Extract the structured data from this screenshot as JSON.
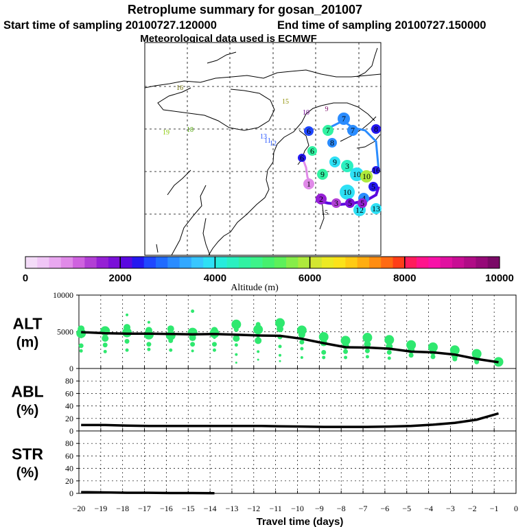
{
  "header": {
    "title": "Retroplume summary for gosan_201007",
    "start_label": "Start time of sampling 20100727.120000",
    "end_label": "End time of sampling 20100727.150000",
    "met_label": "Meteorological data used is ECMWF"
  },
  "colorbar": {
    "label": "Altitude (m)",
    "ticks": [
      "0",
      "2000",
      "4000",
      "6000",
      "8000",
      "10000"
    ],
    "colors": [
      "#f4dcf8",
      "#f0c6f6",
      "#e9a8f0",
      "#e08ae8",
      "#cf62df",
      "#b23fd5",
      "#9520d4",
      "#7a10d8",
      "#5a08e0",
      "#2418f0",
      "#1f47ff",
      "#1f6bff",
      "#2a8cff",
      "#32a8ff",
      "#38c6ff",
      "#2ee0f5",
      "#27ecdc",
      "#2af0c0",
      "#31f2a2",
      "#3df38a",
      "#46f06e",
      "#5df05a",
      "#86ed49",
      "#aeea3c",
      "#d3e631",
      "#ecea22",
      "#fbe21a",
      "#ffcb14",
      "#ffad10",
      "#ff8d10",
      "#ff6a12",
      "#ff3e18",
      "#ff1c5c",
      "#ff148c",
      "#f812a8",
      "#e010a0",
      "#c80e94",
      "#b00c86",
      "#960a78",
      "#7a0a66"
    ]
  },
  "map": {
    "run_labels": [
      {
        "t": "16",
        "c": "#6b6b00"
      },
      {
        "t": "15",
        "c": "#8f8f00"
      },
      {
        "t": "10",
        "c": "#6e0090"
      },
      {
        "t": "9",
        "c": "#7a0a66"
      },
      {
        "t": "19",
        "c": "#87c800"
      },
      {
        "t": "18",
        "c": "#4aa000"
      },
      {
        "t": "13",
        "c": "#2050ff"
      },
      {
        "t": "11",
        "c": "#2050ff"
      },
      {
        "t": "12",
        "c": "#2050ff"
      },
      {
        "t": "15",
        "c": "#111111"
      }
    ],
    "markers": [
      {
        "t": "7",
        "c": "#2a8cff"
      },
      {
        "t": "7",
        "c": "#31f2a2"
      },
      {
        "t": "7",
        "c": "#2a8cff"
      },
      {
        "t": "6",
        "c": "#1f47ff"
      },
      {
        "t": "8",
        "c": "#2a8cff"
      },
      {
        "t": "6",
        "c": "#31f2a2"
      },
      {
        "t": "9",
        "c": "#2ee0f5"
      },
      {
        "t": "3",
        "c": "#2af0c0"
      },
      {
        "t": "10",
        "c": "#2ee0f5"
      },
      {
        "t": "10",
        "c": "#aeea3c"
      },
      {
        "t": "9",
        "c": "#31f2a2"
      },
      {
        "t": "10",
        "c": "#2ee0f5"
      },
      {
        "t": "1",
        "c": "#e08ae8"
      },
      {
        "t": "2",
        "c": "#9520d4"
      },
      {
        "t": "3",
        "c": "#b23fd5"
      },
      {
        "t": "5",
        "c": "#7a10d8"
      },
      {
        "t": "4",
        "c": "#2a8cff"
      },
      {
        "t": "12",
        "c": "#2ee0f5"
      },
      {
        "t": "13",
        "c": "#2ee0f5"
      },
      {
        "t": "5",
        "c": "#2418f0"
      },
      {
        "t": "5",
        "c": "#9520d4"
      },
      {
        "t": "8",
        "c": "#2418f0"
      },
      {
        "t": "6",
        "c": "#2418f0"
      },
      {
        "t": "16",
        "c": "#2418f0"
      }
    ]
  },
  "chart_data": [
    {
      "type": "scatter",
      "title": "ALT",
      "ylabel": "ALT (m)",
      "ylabel_top": "ALT",
      "ylabel_bottom": "(m)",
      "ylim": [
        0,
        10000
      ],
      "yticks": [
        "0",
        "5000",
        "10000"
      ],
      "x": [
        -19.9,
        -18.8,
        -17.8,
        -16.8,
        -15.8,
        -14.8,
        -13.8,
        -12.8,
        -11.8,
        -10.8,
        -9.8,
        -8.8,
        -7.8,
        -6.8,
        -5.8,
        -4.8,
        -3.8,
        -2.8,
        -1.8,
        -0.8
      ],
      "median_line": [
        4950,
        4800,
        4750,
        4750,
        4700,
        4650,
        4700,
        4600,
        4500,
        4450,
        4050,
        3450,
        2900,
        2850,
        2700,
        2300,
        2200,
        1900,
        1300,
        850
      ],
      "clusters": [
        [
          4800,
          5400,
          3100,
          2400,
          4300
        ],
        [
          5100,
          4100,
          3200,
          2300
        ],
        [
          4900,
          5600,
          3700,
          2500,
          7300
        ],
        [
          4600,
          5200,
          3300,
          2600,
          6300
        ],
        [
          4500,
          5400,
          3800,
          2500
        ],
        [
          4900,
          4200,
          3300,
          7800,
          2400
        ],
        [
          4800,
          5200,
          3300,
          2500,
          4200
        ],
        [
          6000,
          4100,
          5300,
          3200,
          1900,
          800
        ],
        [
          5300,
          3800,
          6000,
          4400,
          2300,
          1200
        ],
        [
          6200,
          5400,
          4300,
          3000,
          1800,
          1000
        ],
        [
          5200,
          4600,
          3600,
          2700,
          1500
        ],
        [
          4300,
          3500,
          2200,
          1500
        ],
        [
          3800,
          3100,
          2300,
          1500
        ],
        [
          4200,
          3300,
          2400,
          1600
        ],
        [
          3900,
          3000,
          2200,
          1400
        ],
        [
          3200,
          2500,
          1800
        ],
        [
          2900,
          2300,
          1600
        ],
        [
          2500,
          1800,
          1300
        ],
        [
          2000,
          1400,
          900
        ],
        [
          900,
          800
        ]
      ],
      "color": "#2fe86f"
    },
    {
      "type": "line",
      "title": "ABL",
      "ylabel": "ABL (%)",
      "ylabel_top": "ABL",
      "ylabel_bottom": "(%)",
      "ylim": [
        0,
        100
      ],
      "yticks": [
        "0",
        "20",
        "40",
        "60",
        "80"
      ],
      "x": [
        -19.9,
        -18.8,
        -17.8,
        -16.8,
        -15.8,
        -14.8,
        -13.8,
        -12.8,
        -11.8,
        -10.8,
        -9.8,
        -8.8,
        -7.8,
        -6.8,
        -5.8,
        -4.8,
        -3.8,
        -2.8,
        -1.8,
        -0.8
      ],
      "values": [
        9.5,
        9.5,
        8.5,
        8.0,
        8.0,
        8.0,
        8.0,
        8.0,
        8.0,
        7.5,
        7.0,
        6.5,
        6.5,
        6.5,
        7.0,
        8.0,
        10.0,
        13.0,
        18.0,
        28.0
      ]
    },
    {
      "type": "line",
      "title": "STR",
      "ylabel": "STR (%)",
      "ylabel_top": "STR",
      "ylabel_bottom": "(%)",
      "ylim": [
        0,
        100
      ],
      "yticks": [
        "0",
        "20",
        "40",
        "60",
        "80"
      ],
      "x": [
        -19.9,
        -18.8,
        -17.8,
        -16.8,
        -15.8,
        -14.8,
        -13.8
      ],
      "values": [
        2.0,
        1.5,
        1.0,
        1.0,
        0.5,
        0.5,
        0.2
      ]
    }
  ],
  "xaxis": {
    "label": "Travel time (days)",
    "ticks": [
      "−20",
      "−19",
      "−18",
      "−17",
      "−16",
      "−15",
      "−14",
      "−13",
      "−12",
      "−11",
      "−10",
      "−9",
      "−8",
      "−7",
      "−6",
      "−5",
      "−4",
      "−3",
      "−2",
      "−1",
      "0"
    ],
    "values": [
      -20,
      -19,
      -18,
      -17,
      -16,
      -15,
      -14,
      -13,
      -12,
      -11,
      -10,
      -9,
      -8,
      -7,
      -6,
      -5,
      -4,
      -3,
      -2,
      -1,
      0
    ]
  }
}
